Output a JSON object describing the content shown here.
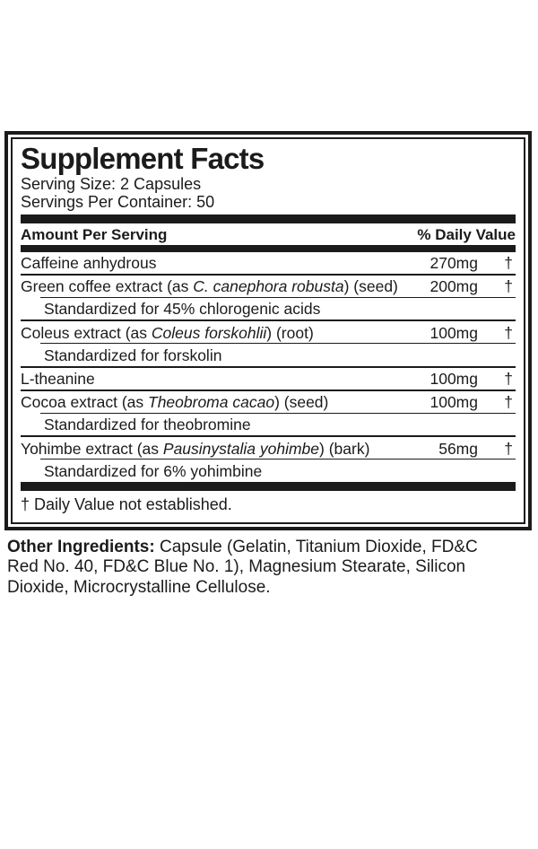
{
  "panel": {
    "title": "Supplement Facts",
    "serving_size": "Serving Size: 2 Capsules",
    "servings_per_container": "Servings Per Container: 50",
    "column_left": "Amount Per Serving",
    "column_right": "% Daily Value",
    "footnote": "† Daily Value not established."
  },
  "ingredients": [
    {
      "pre": "Caffeine anhydrous",
      "sci": "",
      "post": "",
      "amount": "270mg",
      "dv": "†"
    },
    {
      "pre": "Green coffee extract (as ",
      "sci": "C. canephora robusta",
      "post": ") (seed)",
      "amount": "200mg",
      "dv": "†",
      "sub": "Standardized for 45% chlorogenic acids"
    },
    {
      "pre": "Coleus extract (as ",
      "sci": "Coleus forskohlii",
      "post": ") (root)",
      "amount": "100mg",
      "dv": "†",
      "sub": "Standardized for forskolin"
    },
    {
      "pre": "L-theanine",
      "sci": "",
      "post": "",
      "amount": "100mg",
      "dv": "†"
    },
    {
      "pre": "Cocoa extract (as ",
      "sci": "Theobroma cacao",
      "post": ") (seed)",
      "amount": "100mg",
      "dv": "†",
      "sub": "Standardized for theobromine"
    },
    {
      "pre": "Yohimbe extract (as ",
      "sci": "Pausinystalia yohimbe",
      "post": ") (bark)",
      "amount": "56mg",
      "dv": "†",
      "sub": "Standardized for 6% yohimbine"
    }
  ],
  "other_ingredients": {
    "label": "Other Ingredients:",
    "text": " Capsule (Gelatin, Titanium Dioxide, FD&C Red No. 40, FD&C Blue No. 1), Magnesium Stearate, Silicon Dioxide, Microcrystalline Cellulose."
  },
  "colors": {
    "ink": "#1b1b1b",
    "background": "#ffffff"
  }
}
